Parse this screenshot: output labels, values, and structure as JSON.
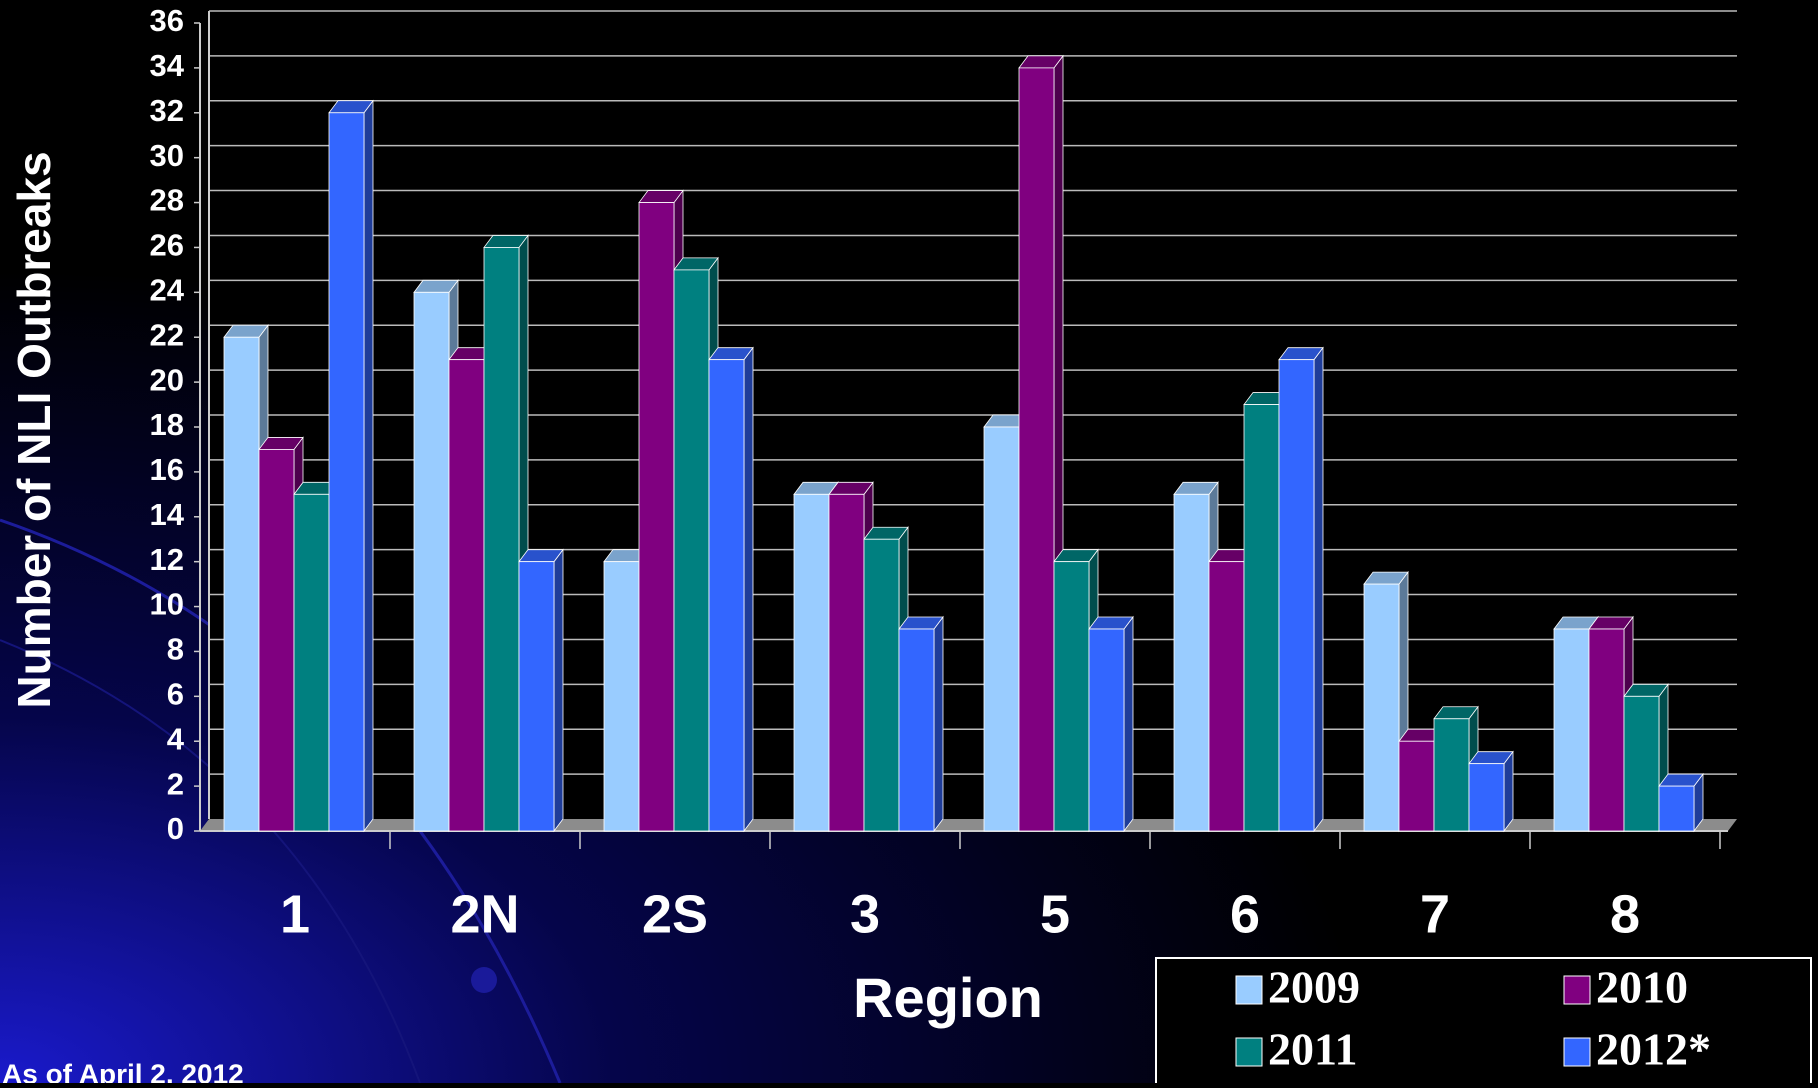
{
  "chart_data": {
    "type": "bar",
    "y_label": "Number of NLI Outbreaks",
    "x_label": "Region",
    "footnote": "As of April 2, 2012",
    "categories": [
      "1",
      "2N",
      "2S",
      "3",
      "5",
      "6",
      "7",
      "8"
    ],
    "series": [
      {
        "name": "2009",
        "color": "#99ccff",
        "values": [
          22,
          24,
          12,
          15,
          18,
          15,
          11,
          9
        ]
      },
      {
        "name": "2010",
        "color": "#800080",
        "values": [
          17,
          21,
          28,
          15,
          34,
          12,
          4,
          9
        ]
      },
      {
        "name": "2011",
        "color": "#008080",
        "values": [
          15,
          26,
          25,
          13,
          12,
          19,
          5,
          6
        ]
      },
      {
        "name": "2012*",
        "color": "#3366ff",
        "values": [
          32,
          12,
          21,
          9,
          9,
          21,
          3,
          2
        ]
      }
    ],
    "ylim": [
      0,
      36
    ],
    "yticks": [
      0,
      2,
      4,
      6,
      8,
      10,
      12,
      14,
      16,
      18,
      20,
      22,
      24,
      26,
      28,
      30,
      32,
      34,
      36
    ],
    "grid": true
  }
}
